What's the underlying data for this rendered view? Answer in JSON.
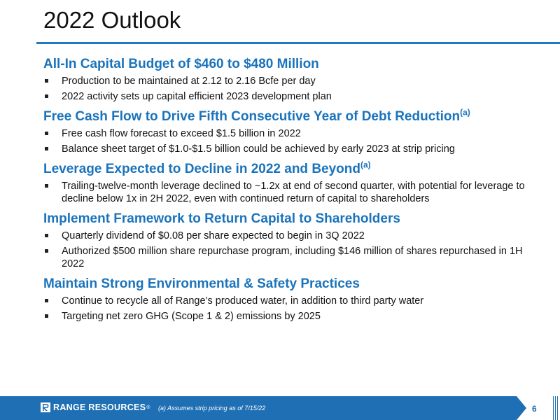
{
  "slide": {
    "title": "2022 Outlook",
    "page_number": "6",
    "footnote": "(a) Assumes strip pricing as of 7/15/22",
    "logo_text": "RANGE RESOURCES",
    "logo_reg": "®"
  },
  "sections": [
    {
      "heading": "All-In Capital Budget of $460 to $480 Million",
      "sup": "",
      "bullets": [
        "Production to be maintained at 2.12 to 2.16 Bcfe per day",
        "2022 activity sets up capital efficient 2023 development plan"
      ]
    },
    {
      "heading": "Free Cash Flow to Drive Fifth Consecutive Year of Debt Reduction",
      "sup": "(a)",
      "bullets": [
        "Free cash flow forecast to exceed $1.5 billion in 2022",
        "Balance sheet target of $1.0-$1.5 billion could be achieved by early 2023 at strip pricing"
      ]
    },
    {
      "heading": "Leverage Expected to Decline in 2022 and Beyond",
      "sup": "(a)",
      "bullets": [
        "Trailing-twelve-month leverage declined to ~1.2x at end of second quarter, with potential for leverage to decline below 1x in 2H 2022, even with continued return of capital to shareholders"
      ]
    },
    {
      "heading": "Implement Framework to Return Capital to Shareholders",
      "sup": "",
      "bullets": [
        "Quarterly dividend of $0.08 per share expected to begin in 3Q 2022",
        "Authorized $500 million share repurchase program, including $146 million of shares repurchased in 1H 2022"
      ]
    },
    {
      "heading": "Maintain Strong Environmental & Safety Practices",
      "sup": "",
      "bullets": [
        "Continue to recycle all of Range’s produced water, in addition to third party water",
        "Targeting net zero GHG (Scope 1 & 2) emissions by 2025"
      ]
    }
  ],
  "colors": {
    "accent": "#1a73bb",
    "footer": "#1f6fb4"
  }
}
